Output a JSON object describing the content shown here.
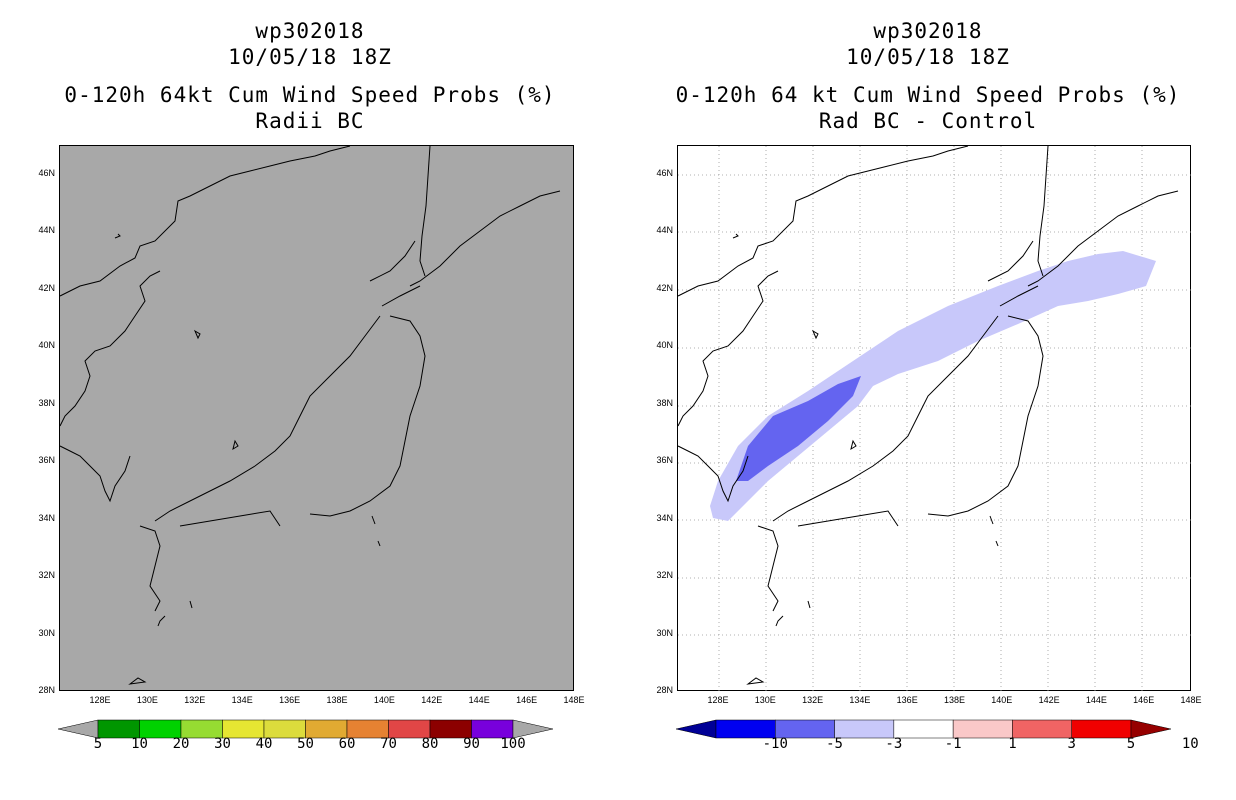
{
  "left_panel": {
    "title_line1": "wp302018",
    "title_line2": "10/05/18 18Z",
    "title_line3": "0-120h 64kt Cum Wind Speed Probs (%)",
    "title_line4": "Radii BC",
    "background_color": "#a8a8a8",
    "colorbar": {
      "labels": [
        "5",
        "10",
        "20",
        "30",
        "40",
        "50",
        "60",
        "70",
        "80",
        "90",
        "100"
      ],
      "colors": [
        "#009600",
        "#00d200",
        "#96dc32",
        "#e6e632",
        "#dcdc3c",
        "#e1aa32",
        "#e68232",
        "#e14646",
        "#8c0000",
        "#7800dc"
      ]
    }
  },
  "right_panel": {
    "title_line1": "wp302018",
    "title_line2": "10/05/18 18Z",
    "title_line3": "0-120h 64 kt Cum Wind Speed Probs (%)",
    "title_line4": "Rad BC - Control",
    "background_color": "#ffffff",
    "colorbar": {
      "labels": [
        "-10",
        "-5",
        "-3",
        "-1",
        "1",
        "3",
        "5",
        "10"
      ],
      "colors": [
        "#000096",
        "#0000f0",
        "#6464f0",
        "#c8c8fa",
        "#ffffff",
        "#fac8c8",
        "#f06464",
        "#f00000",
        "#960000"
      ]
    }
  },
  "axes": {
    "lat_labels": [
      "46N",
      "44N",
      "42N",
      "40N",
      "38N",
      "36N",
      "34N",
      "32N",
      "30N",
      "28N"
    ],
    "lon_labels": [
      "128E",
      "130E",
      "132E",
      "134E",
      "136E",
      "138E",
      "140E",
      "142E",
      "144E",
      "146E",
      "148E"
    ]
  }
}
